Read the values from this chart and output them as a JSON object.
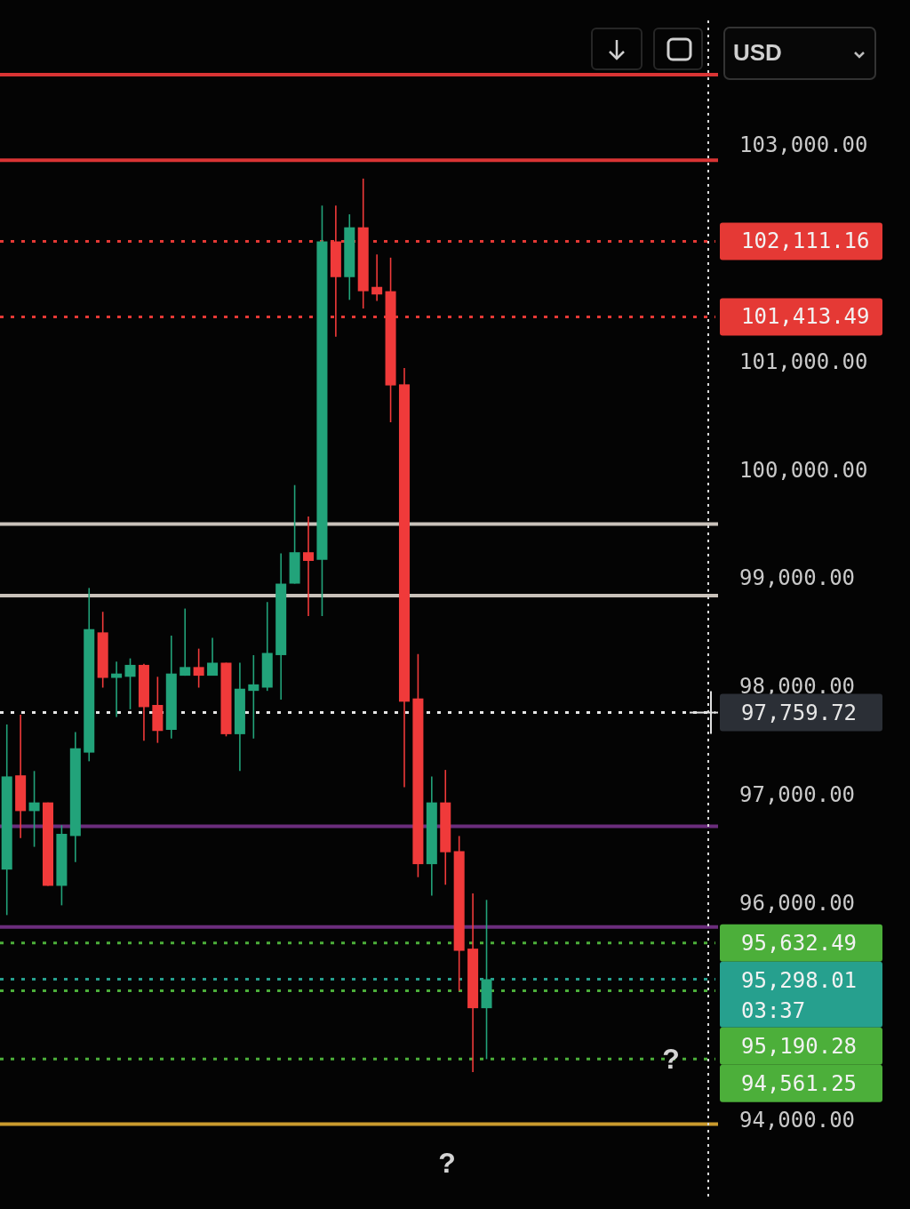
{
  "chart_data": {
    "type": "candlestick",
    "ylabel": "USD",
    "categories": [
      null,
      null,
      null,
      null,
      null,
      null,
      null,
      null,
      null,
      null,
      null,
      null,
      null,
      null,
      null,
      null,
      null,
      null,
      null,
      null,
      null,
      null,
      null,
      null,
      null,
      null,
      null,
      null,
      null,
      null,
      null,
      null,
      null,
      null,
      null,
      null,
      null,
      null,
      null,
      null,
      null,
      null,
      null,
      null,
      null,
      null,
      null,
      null,
      null,
      null,
      null,
      null
    ],
    "ohlc": [
      [
        96310,
        97650,
        95890,
        97170
      ],
      [
        97180,
        97740,
        96600,
        96850
      ],
      [
        96850,
        97220,
        96520,
        96930
      ],
      [
        96930,
        96930,
        96160,
        96160
      ],
      [
        96160,
        96720,
        95980,
        96640
      ],
      [
        96620,
        97580,
        96380,
        97430
      ],
      [
        97390,
        98910,
        97310,
        98530
      ],
      [
        98500,
        98690,
        97990,
        98080
      ],
      [
        98080,
        98230,
        97720,
        98120
      ],
      [
        98090,
        98260,
        97790,
        98200
      ],
      [
        98200,
        98210,
        97500,
        97810
      ],
      [
        97830,
        98090,
        97480,
        97590
      ],
      [
        97600,
        98470,
        97520,
        98120
      ],
      [
        98100,
        98720,
        98100,
        98180
      ],
      [
        98180,
        98350,
        97990,
        98100
      ],
      [
        98100,
        98450,
        98100,
        98220
      ],
      [
        98220,
        98220,
        97540,
        97560
      ],
      [
        97560,
        98220,
        97220,
        97980
      ],
      [
        97960,
        98290,
        97520,
        98020
      ],
      [
        97990,
        98780,
        97960,
        98310
      ],
      [
        98290,
        99230,
        97880,
        98950
      ],
      [
        98950,
        99860,
        98950,
        99240
      ],
      [
        99240,
        99570,
        98650,
        99160
      ],
      [
        99170,
        102440,
        98650,
        102110
      ],
      [
        102110,
        102440,
        101230,
        101780
      ],
      [
        101780,
        102360,
        101570,
        102240
      ],
      [
        102240,
        102690,
        101490,
        101650
      ],
      [
        101690,
        101990,
        101560,
        101620
      ],
      [
        101650,
        101960,
        100440,
        100780
      ],
      [
        100790,
        100940,
        97070,
        97860
      ],
      [
        97890,
        98300,
        96240,
        96360
      ],
      [
        96360,
        97170,
        96070,
        96930
      ],
      [
        96930,
        97230,
        96170,
        96470
      ],
      [
        96480,
        96620,
        95190,
        95560
      ],
      [
        95580,
        96090,
        94440,
        95030
      ],
      [
        95030,
        96030,
        94560,
        95298.01
      ],
      null,
      null,
      null,
      null,
      null,
      null,
      null,
      null,
      null,
      null,
      null,
      null,
      null,
      null,
      null,
      null
    ],
    "colors": [
      "#22a37a",
      "#f03a3a",
      "#22a37a",
      "#f03a3a",
      "#22a37a",
      "#22a37a",
      "#22a37a",
      "#f03a3a",
      "#22a37a",
      "#22a37a",
      "#f03a3a",
      "#f03a3a",
      "#22a37a",
      "#22a37a",
      "#f03a3a",
      "#22a37a",
      "#f03a3a",
      "#22a37a",
      "#22a37a",
      "#22a37a",
      "#22a37a",
      "#22a37a",
      "#f03a3a",
      "#22a37a",
      "#f03a3a",
      "#22a37a",
      "#f03a3a",
      "#f03a3a",
      "#f03a3a",
      "#f03a3a",
      "#f03a3a",
      "#22a37a",
      "#f03a3a",
      "#f03a3a",
      "#f03a3a",
      "#22a37a",
      null,
      null,
      null,
      null,
      null,
      null,
      null,
      null,
      null,
      null,
      null,
      null,
      null,
      null,
      null,
      null
    ],
    "ylim": [
      93250,
      104150
    ],
    "yticks": [
      {
        "value": 103000,
        "label": "103,000.00"
      },
      {
        "value": 101000,
        "label": "101,000.00"
      },
      {
        "value": 100000,
        "label": "100,000.00"
      },
      {
        "value": 99000,
        "label": "99,000.00"
      },
      {
        "value": 98000,
        "label": "98,000.00"
      },
      {
        "value": 97000,
        "label": "97,000.00"
      },
      {
        "value": 96000,
        "label": "96,000.00"
      },
      {
        "value": 94000,
        "label": "94,000.00"
      }
    ],
    "tick_labels": "y",
    "ref_lines": [
      {
        "axis": "y",
        "value": 103650,
        "color": "#d93434",
        "line_style": "solid"
      },
      {
        "axis": "y",
        "value": 102860,
        "color": "#d93434",
        "line_style": "solid"
      },
      {
        "axis": "y",
        "value": 102111.16,
        "label": "102,111.16",
        "color": "#e53935",
        "line_style": "dotted"
      },
      {
        "axis": "y",
        "value": 101413.49,
        "label": "101,413.49",
        "color": "#e53935",
        "line_style": "dotted"
      },
      {
        "axis": "y",
        "value": 99500,
        "color": "#c9c2ba",
        "line_style": "solid"
      },
      {
        "axis": "y",
        "value": 98840,
        "color": "#c9c2ba",
        "line_style": "solid"
      },
      {
        "axis": "y",
        "value": 97759.72,
        "label": "97,759.72",
        "color": "#e6e6e6",
        "line_style": "dotted"
      },
      {
        "axis": "y",
        "value": 96710,
        "color": "#6b2d7c",
        "line_style": "solid"
      },
      {
        "axis": "y",
        "value": 95780,
        "color": "#6b2d7c",
        "line_style": "solid"
      },
      {
        "axis": "y",
        "value": 95632.49,
        "label": "95,632.49",
        "color": "#4caf3a",
        "line_style": "dotted"
      },
      {
        "axis": "y",
        "value": 95298.01,
        "label": "95,298.01\n03:37",
        "color": "#26a08e",
        "line_style": "dotted"
      },
      {
        "axis": "y",
        "value": 95190.28,
        "label": "95,190.28",
        "color": "#4caf3a",
        "line_style": "dotted"
      },
      {
        "axis": "y",
        "value": 94561.25,
        "label": "94,561.25",
        "color": "#4caf3a",
        "line_style": "dotted"
      },
      {
        "axis": "y",
        "value": 93960,
        "color": "#c99a2e",
        "line_style": "solid"
      }
    ],
    "annotations": [
      {
        "text": "?",
        "y": 94561.25
      },
      "?"
    ]
  }
}
